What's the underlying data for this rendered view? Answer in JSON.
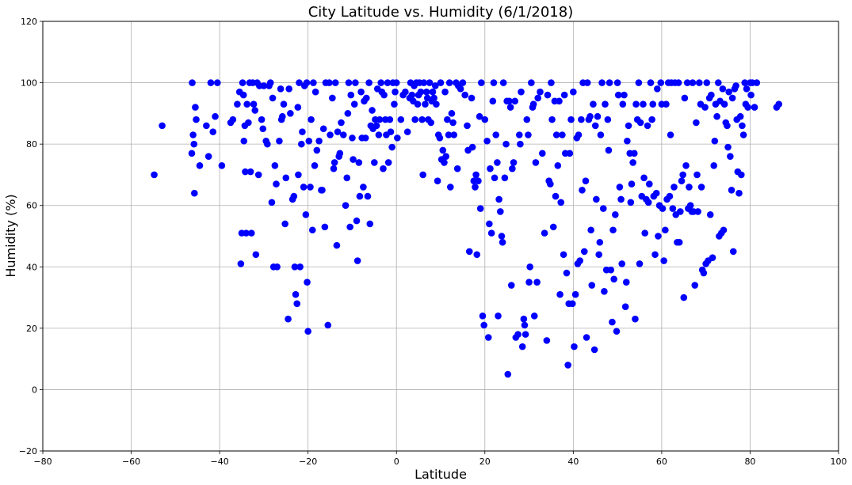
{
  "chart_data": {
    "type": "scatter",
    "title": "City Latitude vs. Humidity (6/1/2018)",
    "xlabel": "Latitude",
    "ylabel": "Humidity (%)",
    "xlim": [
      -80,
      100
    ],
    "ylim": [
      -20,
      120
    ],
    "xticks": [
      -80,
      -60,
      -40,
      -20,
      0,
      20,
      40,
      60,
      80,
      100
    ],
    "yticks": [
      -20,
      0,
      20,
      40,
      60,
      80,
      100,
      120
    ],
    "grid": true,
    "marker_color": "#0000ff",
    "points": [
      [
        -54.8,
        70
      ],
      [
        -53,
        86
      ],
      [
        -46.2,
        100
      ],
      [
        -46.3,
        77
      ],
      [
        -46,
        83
      ],
      [
        -45.8,
        80
      ],
      [
        -45.7,
        64
      ],
      [
        -45.5,
        92
      ],
      [
        -45.3,
        88
      ],
      [
        -44.5,
        73
      ],
      [
        -43,
        86
      ],
      [
        -42.5,
        76
      ],
      [
        -42,
        100
      ],
      [
        -41.5,
        84
      ],
      [
        -41,
        89
      ],
      [
        -40.5,
        100
      ],
      [
        -39.5,
        73
      ],
      [
        -37.5,
        87
      ],
      [
        -37,
        88
      ],
      [
        -36,
        93
      ],
      [
        -35.5,
        97
      ],
      [
        -35.2,
        41
      ],
      [
        -35,
        51
      ],
      [
        -34.8,
        100
      ],
      [
        -34.6,
        96
      ],
      [
        -34.5,
        81
      ],
      [
        -34.3,
        86
      ],
      [
        -34.2,
        71
      ],
      [
        -34,
        51
      ],
      [
        -33.8,
        93
      ],
      [
        -33.5,
        87
      ],
      [
        -33.2,
        100
      ],
      [
        -33,
        71
      ],
      [
        -32.8,
        51
      ],
      [
        -32.5,
        100
      ],
      [
        -32.3,
        93
      ],
      [
        -32,
        91
      ],
      [
        -31.8,
        44
      ],
      [
        -31.5,
        100
      ],
      [
        -31.2,
        70
      ],
      [
        -31,
        99
      ],
      [
        -30.5,
        88
      ],
      [
        -30.2,
        85
      ],
      [
        -30,
        99
      ],
      [
        -29.5,
        81
      ],
      [
        -29.2,
        80
      ],
      [
        -28.8,
        99
      ],
      [
        -28.5,
        100
      ],
      [
        -28.2,
        61
      ],
      [
        -28,
        95
      ],
      [
        -27.8,
        40
      ],
      [
        -27.5,
        73
      ],
      [
        -27.2,
        67
      ],
      [
        -27,
        40
      ],
      [
        -26.5,
        81
      ],
      [
        -26.2,
        98
      ],
      [
        -26,
        88
      ],
      [
        -25.8,
        89
      ],
      [
        -25.5,
        93
      ],
      [
        -25.2,
        54
      ],
      [
        -25,
        69
      ],
      [
        -24.5,
        23
      ],
      [
        -24.3,
        98
      ],
      [
        -24,
        90
      ],
      [
        -23.5,
        62
      ],
      [
        -23.2,
        63
      ],
      [
        -23,
        40
      ],
      [
        -22.8,
        31
      ],
      [
        -22.5,
        28
      ],
      [
        -22.3,
        92
      ],
      [
        -22.2,
        70
      ],
      [
        -22,
        100
      ],
      [
        -21.8,
        40
      ],
      [
        -21.5,
        80
      ],
      [
        -21.3,
        84
      ],
      [
        -21,
        66
      ],
      [
        -20.8,
        99
      ],
      [
        -20.5,
        57
      ],
      [
        -20.3,
        100
      ],
      [
        -20.2,
        35
      ],
      [
        -20,
        19
      ],
      [
        -19.8,
        81
      ],
      [
        -19.5,
        66
      ],
      [
        -19.3,
        88
      ],
      [
        -19,
        52
      ],
      [
        -18.8,
        100
      ],
      [
        -18.5,
        73
      ],
      [
        -18.3,
        97
      ],
      [
        -18,
        78
      ],
      [
        -17.5,
        81
      ],
      [
        -17,
        65
      ],
      [
        -16.8,
        65
      ],
      [
        -16.5,
        85
      ],
      [
        -16.2,
        53
      ],
      [
        -16,
        100
      ],
      [
        -15.5,
        21
      ],
      [
        -15.2,
        100
      ],
      [
        -15,
        83
      ],
      [
        -14.5,
        95
      ],
      [
        -14.2,
        72
      ],
      [
        -14,
        74
      ],
      [
        -13.8,
        100
      ],
      [
        -13.5,
        47
      ],
      [
        -13.3,
        84
      ],
      [
        -13,
        76
      ],
      [
        -12.8,
        77
      ],
      [
        -12.5,
        87
      ],
      [
        -12,
        83
      ],
      [
        -11.5,
        60
      ],
      [
        -11.2,
        69
      ],
      [
        -11,
        90
      ],
      [
        -10.8,
        100
      ],
      [
        -10.5,
        53
      ],
      [
        -10.3,
        96
      ],
      [
        -10,
        82
      ],
      [
        -9.8,
        75
      ],
      [
        -9.5,
        93
      ],
      [
        -9.3,
        100
      ],
      [
        -9,
        55
      ],
      [
        -8.8,
        42
      ],
      [
        -8.5,
        74
      ],
      [
        -8.3,
        63
      ],
      [
        -8,
        97
      ],
      [
        -7.8,
        82
      ],
      [
        -7.5,
        66
      ],
      [
        -7.3,
        94
      ],
      [
        -7,
        82
      ],
      [
        -6.8,
        95
      ],
      [
        -6.5,
        63
      ],
      [
        -6.2,
        100
      ],
      [
        -6,
        54
      ],
      [
        -5.8,
        86
      ],
      [
        -5.5,
        91
      ],
      [
        -5.3,
        85
      ],
      [
        -5,
        74
      ],
      [
        -4.8,
        88
      ],
      [
        -4.5,
        86
      ],
      [
        -4.3,
        98
      ],
      [
        -4,
        83
      ],
      [
        -3.8,
        88
      ],
      [
        -3.5,
        100
      ],
      [
        -3.3,
        97
      ],
      [
        -3,
        72
      ],
      [
        -2.8,
        96
      ],
      [
        -2.5,
        88
      ],
      [
        -2.3,
        83
      ],
      [
        -2,
        100
      ],
      [
        -1.8,
        74
      ],
      [
        -1.5,
        88
      ],
      [
        -1.3,
        84
      ],
      [
        -1,
        79
      ],
      [
        -0.8,
        100
      ],
      [
        -0.5,
        93
      ],
      [
        -0.3,
        97
      ],
      [
        0,
        100
      ],
      [
        0.2,
        82
      ],
      [
        1,
        88
      ],
      [
        1.5,
        96
      ],
      [
        2,
        97
      ],
      [
        2.5,
        84
      ],
      [
        3,
        95
      ],
      [
        3.2,
        100
      ],
      [
        3.5,
        96
      ],
      [
        3.8,
        94
      ],
      [
        4,
        99
      ],
      [
        4.2,
        88
      ],
      [
        4.5,
        100
      ],
      [
        4.8,
        93
      ],
      [
        5,
        96
      ],
      [
        5.2,
        100
      ],
      [
        5.5,
        97
      ],
      [
        5.8,
        88
      ],
      [
        6,
        70
      ],
      [
        6.2,
        100
      ],
      [
        6.5,
        93
      ],
      [
        6.8,
        97
      ],
      [
        7,
        95
      ],
      [
        7.2,
        88
      ],
      [
        7.5,
        100
      ],
      [
        7.8,
        87
      ],
      [
        8,
        94
      ],
      [
        8.2,
        97
      ],
      [
        8.5,
        95
      ],
      [
        8.8,
        99
      ],
      [
        9,
        93
      ],
      [
        9.3,
        68
      ],
      [
        9.5,
        83
      ],
      [
        9.8,
        82
      ],
      [
        10,
        100
      ],
      [
        10.2,
        75
      ],
      [
        10.5,
        78
      ],
      [
        10.8,
        74
      ],
      [
        11,
        97
      ],
      [
        11.2,
        76
      ],
      [
        11.5,
        88
      ],
      [
        11.8,
        83
      ],
      [
        12,
        100
      ],
      [
        12.2,
        66
      ],
      [
        12.5,
        90
      ],
      [
        12.8,
        87
      ],
      [
        13,
        83
      ],
      [
        13.5,
        100
      ],
      [
        13.8,
        72
      ],
      [
        14,
        99
      ],
      [
        14.5,
        98
      ],
      [
        15,
        100
      ],
      [
        15.5,
        96
      ],
      [
        16,
        86
      ],
      [
        16.2,
        78
      ],
      [
        16.5,
        45
      ],
      [
        17,
        95
      ],
      [
        17.2,
        79
      ],
      [
        17.5,
        68
      ],
      [
        17.8,
        66
      ],
      [
        18,
        70
      ],
      [
        18.2,
        44
      ],
      [
        18.5,
        68
      ],
      [
        18.8,
        89
      ],
      [
        19,
        59
      ],
      [
        19.2,
        100
      ],
      [
        19.5,
        24
      ],
      [
        19.8,
        21
      ],
      [
        20,
        88
      ],
      [
        20.5,
        81
      ],
      [
        20.8,
        17
      ],
      [
        21,
        54
      ],
      [
        21.2,
        72
      ],
      [
        21.5,
        51
      ],
      [
        21.8,
        94
      ],
      [
        22,
        100
      ],
      [
        22.2,
        69
      ],
      [
        22.5,
        83
      ],
      [
        22.8,
        74
      ],
      [
        23,
        24
      ],
      [
        23.2,
        62
      ],
      [
        23.5,
        58
      ],
      [
        23.8,
        50
      ],
      [
        24,
        48
      ],
      [
        24.2,
        100
      ],
      [
        24.5,
        69
      ],
      [
        24.8,
        80
      ],
      [
        25,
        94
      ],
      [
        25.2,
        5
      ],
      [
        25.5,
        94
      ],
      [
        25.8,
        92
      ],
      [
        26,
        34
      ],
      [
        26.2,
        72
      ],
      [
        26.5,
        74
      ],
      [
        26.8,
        94
      ],
      [
        27,
        17
      ],
      [
        27.5,
        18
      ],
      [
        27.8,
        83
      ],
      [
        28,
        80
      ],
      [
        28.2,
        97
      ],
      [
        28.5,
        14
      ],
      [
        28.8,
        23
      ],
      [
        29,
        21
      ],
      [
        29.2,
        18
      ],
      [
        29.5,
        88
      ],
      [
        29.8,
        83
      ],
      [
        30,
        35
      ],
      [
        30.2,
        40
      ],
      [
        30.5,
        100
      ],
      [
        30.8,
        92
      ],
      [
        31,
        93
      ],
      [
        31.2,
        24
      ],
      [
        31.5,
        74
      ],
      [
        31.8,
        35
      ],
      [
        32,
        95
      ],
      [
        32.5,
        97
      ],
      [
        33,
        77
      ],
      [
        33.5,
        51
      ],
      [
        34,
        16
      ],
      [
        34.2,
        96
      ],
      [
        34.5,
        68
      ],
      [
        34.8,
        67
      ],
      [
        35,
        100
      ],
      [
        35.2,
        88
      ],
      [
        35.5,
        53
      ],
      [
        35.8,
        94
      ],
      [
        36,
        63
      ],
      [
        36.2,
        83
      ],
      [
        36.5,
        73
      ],
      [
        36.8,
        94
      ],
      [
        37,
        31
      ],
      [
        37.2,
        61
      ],
      [
        37.5,
        83
      ],
      [
        37.8,
        44
      ],
      [
        38,
        96
      ],
      [
        38.2,
        77
      ],
      [
        38.5,
        38
      ],
      [
        38.8,
        8
      ],
      [
        39,
        28
      ],
      [
        39.2,
        77
      ],
      [
        39.5,
        88
      ],
      [
        39.8,
        28
      ],
      [
        40,
        97
      ],
      [
        40.2,
        14
      ],
      [
        40.5,
        31
      ],
      [
        40.8,
        82
      ],
      [
        41,
        41
      ],
      [
        41.2,
        83
      ],
      [
        41.5,
        42
      ],
      [
        41.8,
        88
      ],
      [
        42,
        65
      ],
      [
        42.2,
        100
      ],
      [
        42.5,
        45
      ],
      [
        42.8,
        68
      ],
      [
        43,
        17
      ],
      [
        43.2,
        100
      ],
      [
        43.5,
        88
      ],
      [
        43.8,
        89
      ],
      [
        44,
        52
      ],
      [
        44.2,
        34
      ],
      [
        44.5,
        93
      ],
      [
        44.8,
        13
      ],
      [
        45,
        86
      ],
      [
        45.2,
        62
      ],
      [
        45.5,
        89
      ],
      [
        45.8,
        44
      ],
      [
        46,
        48
      ],
      [
        46.2,
        83
      ],
      [
        46.5,
        100
      ],
      [
        46.8,
        59
      ],
      [
        47,
        32
      ],
      [
        47.2,
        93
      ],
      [
        47.5,
        39
      ],
      [
        47.8,
        88
      ],
      [
        48,
        78
      ],
      [
        48.2,
        100
      ],
      [
        48.5,
        39
      ],
      [
        48.8,
        22
      ],
      [
        49,
        52
      ],
      [
        49.2,
        36
      ],
      [
        49.5,
        57
      ],
      [
        49.8,
        19
      ],
      [
        50,
        100
      ],
      [
        50.2,
        96
      ],
      [
        50.5,
        66
      ],
      [
        50.8,
        62
      ],
      [
        51,
        41
      ],
      [
        51.2,
        93
      ],
      [
        51.5,
        96
      ],
      [
        51.8,
        27
      ],
      [
        52,
        35
      ],
      [
        52.2,
        81
      ],
      [
        52.5,
        86
      ],
      [
        52.8,
        77
      ],
      [
        53,
        61
      ],
      [
        53.2,
        67
      ],
      [
        53.5,
        74
      ],
      [
        53.8,
        77
      ],
      [
        54,
        23
      ],
      [
        54.2,
        93
      ],
      [
        54.5,
        88
      ],
      [
        54.8,
        100
      ],
      [
        55,
        41
      ],
      [
        55.2,
        87
      ],
      [
        55.5,
        63
      ],
      [
        55.8,
        93
      ],
      [
        56,
        69
      ],
      [
        56.2,
        51
      ],
      [
        56.5,
        62
      ],
      [
        56.8,
        86
      ],
      [
        57,
        61
      ],
      [
        57.2,
        67
      ],
      [
        57.5,
        100
      ],
      [
        57.8,
        88
      ],
      [
        58,
        93
      ],
      [
        58.2,
        63
      ],
      [
        58.5,
        44
      ],
      [
        58.8,
        64
      ],
      [
        59,
        98
      ],
      [
        59.2,
        50
      ],
      [
        59.5,
        60
      ],
      [
        59.8,
        100
      ],
      [
        60,
        93
      ],
      [
        60.2,
        59
      ],
      [
        60.5,
        42
      ],
      [
        60.8,
        52
      ],
      [
        61,
        93
      ],
      [
        61.2,
        62
      ],
      [
        61.5,
        100
      ],
      [
        61.8,
        63
      ],
      [
        62,
        83
      ],
      [
        62.2,
        100
      ],
      [
        62.5,
        59
      ],
      [
        62.8,
        66
      ],
      [
        63,
        100
      ],
      [
        63.2,
        57
      ],
      [
        63.5,
        48
      ],
      [
        63.8,
        100
      ],
      [
        64,
        48
      ],
      [
        64.2,
        58
      ],
      [
        64.5,
        68
      ],
      [
        64.8,
        70
      ],
      [
        65,
        30
      ],
      [
        65.2,
        95
      ],
      [
        65.5,
        73
      ],
      [
        65.8,
        100
      ],
      [
        66,
        59
      ],
      [
        66.2,
        66
      ],
      [
        66.5,
        60
      ],
      [
        66.8,
        58
      ],
      [
        67,
        100
      ],
      [
        67.2,
        58
      ],
      [
        67.5,
        34
      ],
      [
        67.8,
        87
      ],
      [
        68,
        70
      ],
      [
        68.2,
        58
      ],
      [
        68.5,
        100
      ],
      [
        68.8,
        93
      ],
      [
        69,
        66
      ],
      [
        69.2,
        39
      ],
      [
        69.5,
        38
      ],
      [
        69.8,
        92
      ],
      [
        70,
        41
      ],
      [
        70.2,
        100
      ],
      [
        70.5,
        42
      ],
      [
        70.8,
        95
      ],
      [
        71,
        57
      ],
      [
        71.2,
        96
      ],
      [
        71.5,
        43
      ],
      [
        71.8,
        73
      ],
      [
        72,
        81
      ],
      [
        72.2,
        93
      ],
      [
        72.5,
        89
      ],
      [
        72.8,
        100
      ],
      [
        73,
        50
      ],
      [
        73.2,
        94
      ],
      [
        73.5,
        51
      ],
      [
        73.8,
        98
      ],
      [
        74,
        52
      ],
      [
        74.2,
        93
      ],
      [
        74.5,
        87
      ],
      [
        74.8,
        86
      ],
      [
        75,
        79
      ],
      [
        75.2,
        97
      ],
      [
        75.5,
        76
      ],
      [
        75.8,
        65
      ],
      [
        76,
        95
      ],
      [
        76.2,
        45
      ],
      [
        76.5,
        98
      ],
      [
        76.8,
        99
      ],
      [
        77,
        88
      ],
      [
        77.2,
        71
      ],
      [
        77.5,
        64
      ],
      [
        77.8,
        89
      ],
      [
        78,
        70
      ],
      [
        78.2,
        86
      ],
      [
        78.5,
        83
      ],
      [
        78.8,
        100
      ],
      [
        79,
        93
      ],
      [
        79.2,
        98
      ],
      [
        79.5,
        92
      ],
      [
        80,
        100
      ],
      [
        80.2,
        96
      ],
      [
        80.5,
        100
      ],
      [
        81,
        92
      ],
      [
        81.5,
        100
      ],
      [
        86,
        92
      ],
      [
        86.5,
        93
      ]
    ]
  }
}
